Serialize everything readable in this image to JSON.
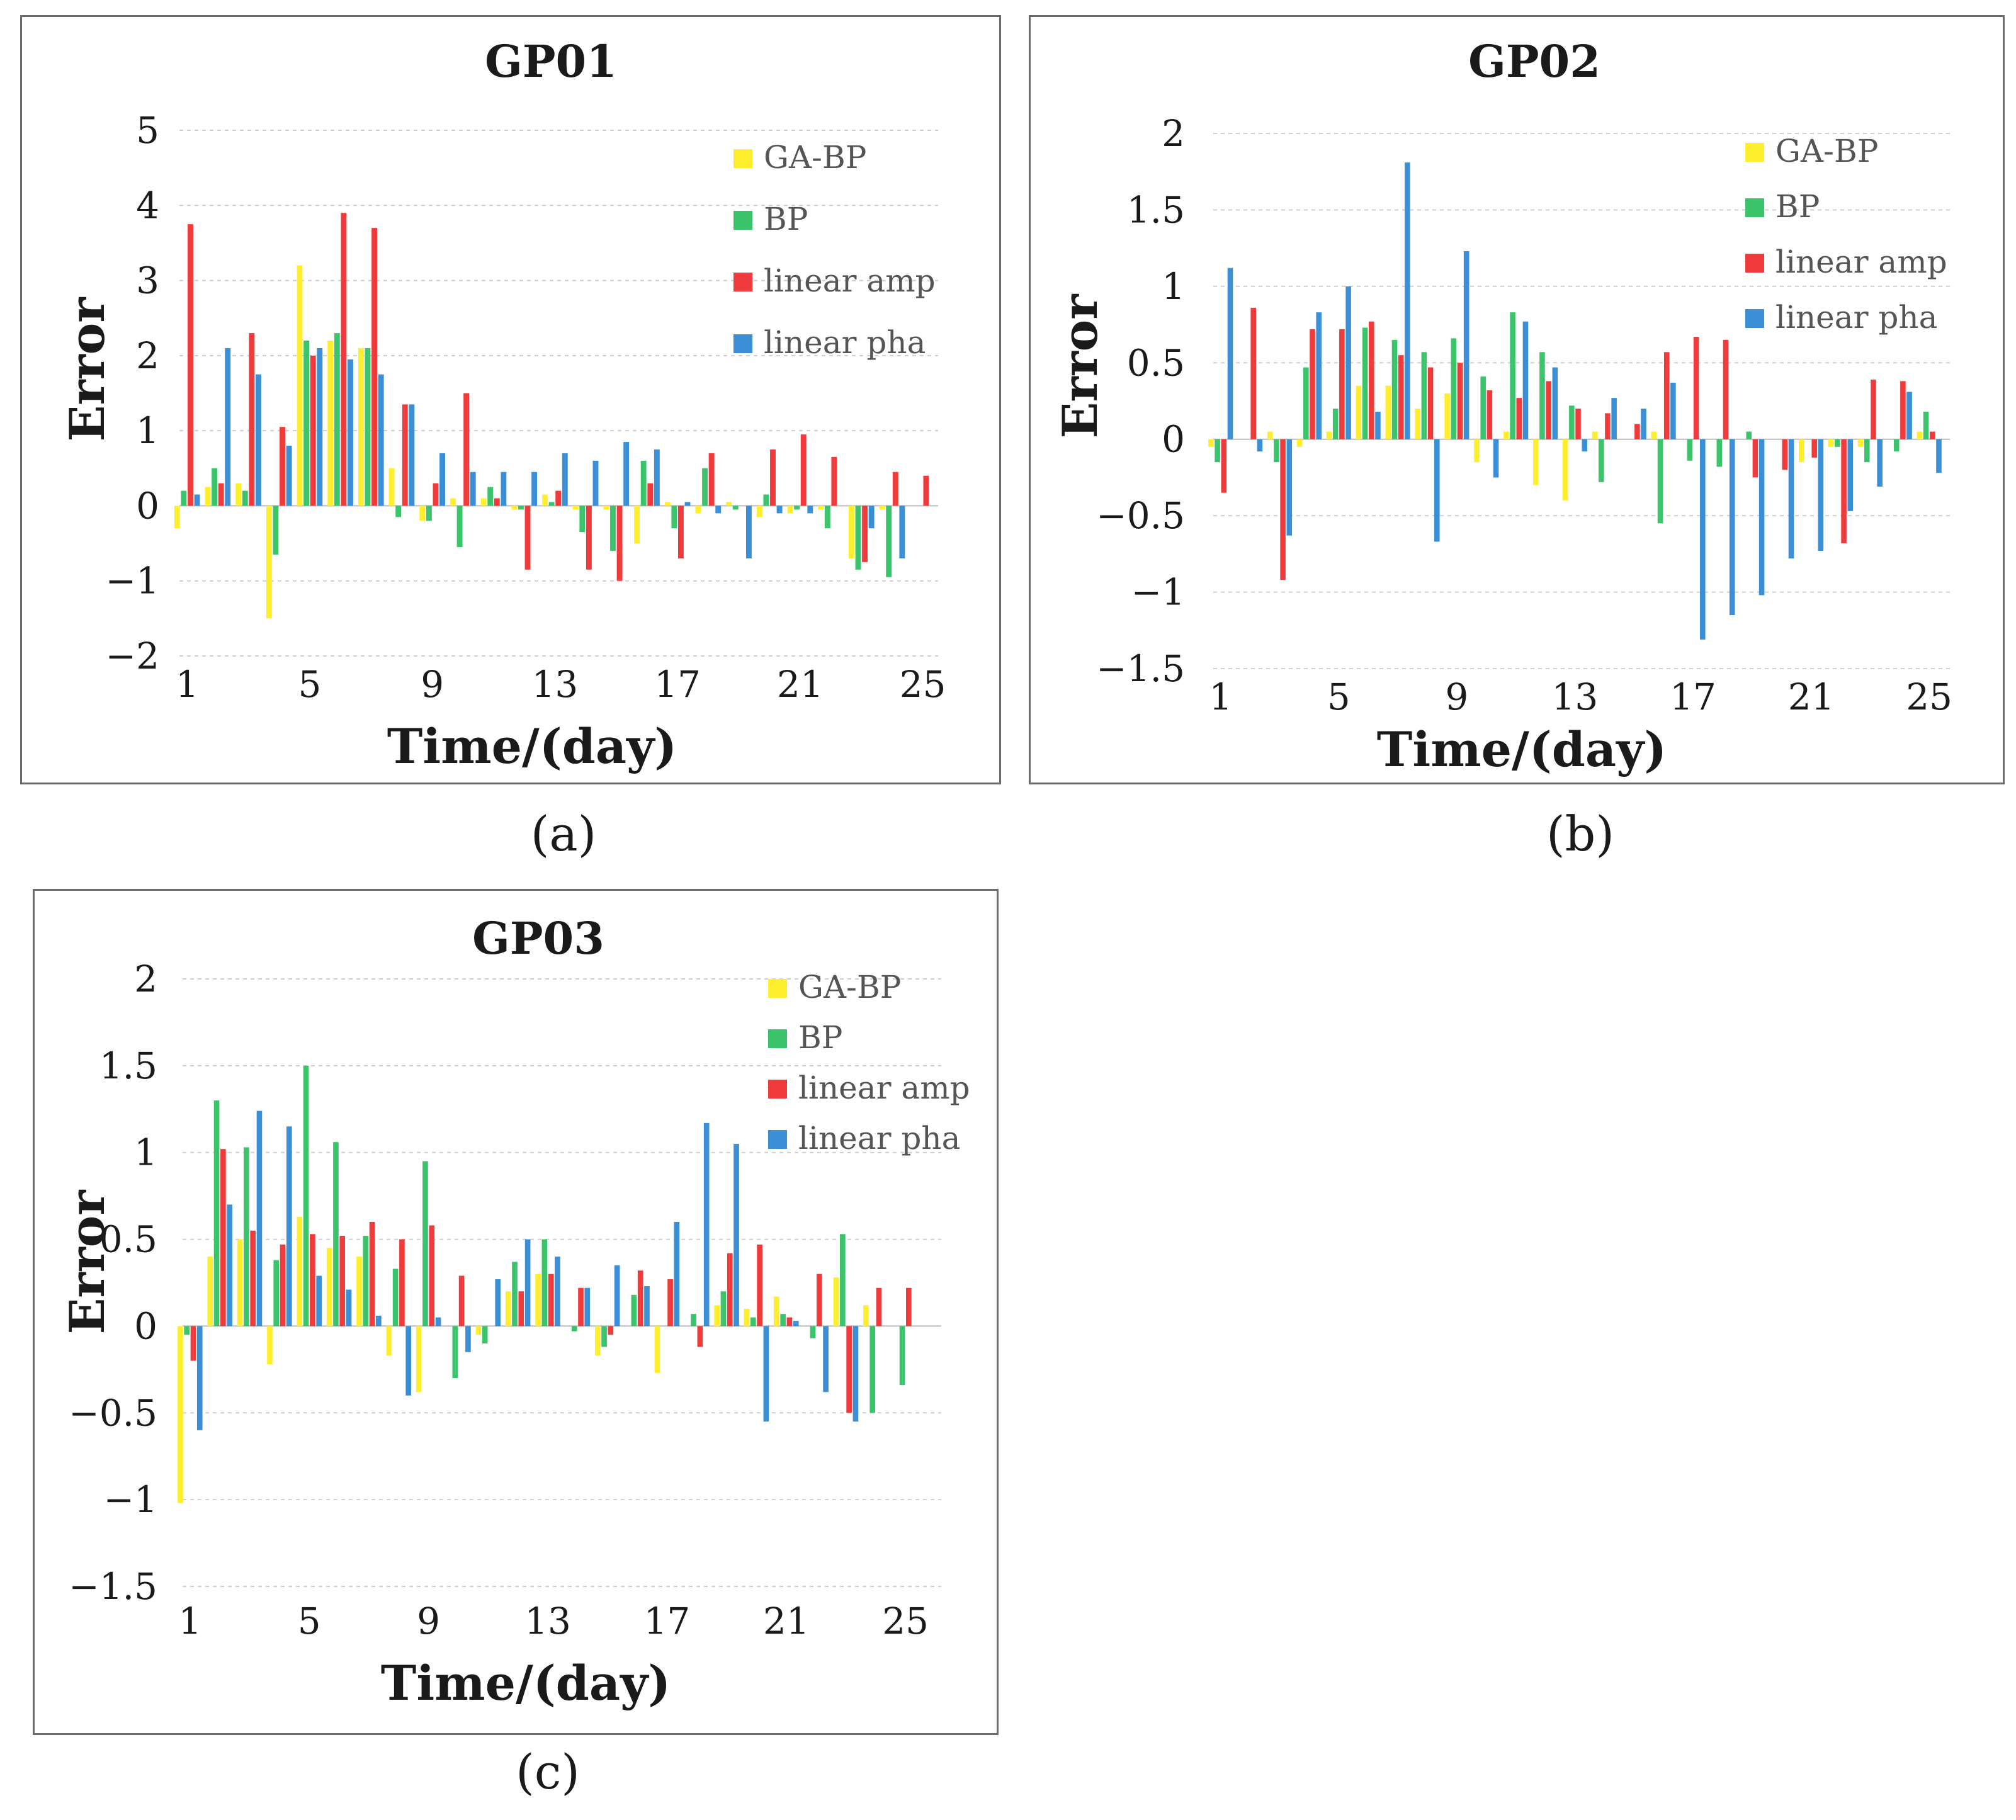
{
  "colors": {
    "GA-BP": "#ffee2e",
    "BP": "#3cc46c",
    "linear amp": "#ef3b3b",
    "linear pha": "#3a8fd6"
  },
  "chart_data": [
    {
      "id": "a",
      "type": "bar",
      "title": "GP01",
      "caption": "(a)",
      "xlabel": "Time/(day)",
      "ylabel": "Error",
      "ylim": [
        -2,
        5
      ],
      "yticks": [
        -2,
        -1,
        0,
        1,
        2,
        3,
        4,
        5
      ],
      "ytick_labels": [
        "−2",
        "−1",
        "0",
        "1",
        "2",
        "3",
        "4",
        "5"
      ],
      "xticks": [
        1,
        5,
        9,
        13,
        17,
        21,
        25
      ],
      "x_max": 25.5,
      "legend": [
        "GA-BP",
        "BP",
        "linear amp",
        "linear pha"
      ],
      "legend_position": "top-right",
      "categories": [
        1,
        2,
        3,
        4,
        5,
        6,
        7,
        8,
        9,
        10,
        11,
        12,
        13,
        14,
        15,
        16,
        17,
        18,
        19,
        20,
        21,
        22,
        23,
        24,
        25
      ],
      "series": [
        {
          "name": "GA-BP",
          "values": [
            -0.3,
            0.25,
            0.3,
            -1.5,
            3.2,
            2.2,
            2.1,
            0.5,
            -0.2,
            0.1,
            0.1,
            -0.05,
            0.15,
            -0.05,
            -0.05,
            -0.5,
            0.05,
            -0.1,
            0.05,
            -0.15,
            -0.1,
            -0.05,
            -0.7,
            -0.05,
            0.0
          ]
        },
        {
          "name": "BP",
          "values": [
            0.2,
            0.5,
            0.2,
            -0.65,
            2.2,
            2.3,
            2.1,
            -0.15,
            -0.2,
            -0.55,
            0.25,
            -0.05,
            0.05,
            -0.35,
            -0.6,
            0.6,
            -0.3,
            0.5,
            -0.05,
            0.15,
            -0.05,
            -0.3,
            -0.85,
            -0.95,
            0.0
          ]
        },
        {
          "name": "linear amp",
          "values": [
            3.75,
            0.3,
            2.3,
            1.05,
            2.0,
            3.9,
            3.7,
            1.35,
            0.3,
            1.5,
            0.1,
            -0.85,
            0.2,
            -0.85,
            -1.0,
            0.3,
            -0.7,
            0.7,
            0.0,
            0.75,
            0.95,
            0.65,
            -0.75,
            0.45,
            0.4
          ]
        },
        {
          "name": "linear pha",
          "values": [
            0.15,
            2.1,
            1.75,
            0.8,
            2.1,
            1.95,
            1.75,
            1.35,
            0.7,
            0.45,
            0.45,
            0.45,
            0.7,
            0.6,
            0.85,
            0.75,
            0.05,
            -0.1,
            -0.7,
            -0.1,
            -0.1,
            0.0,
            -0.3,
            -0.7,
            0.0
          ]
        }
      ]
    },
    {
      "id": "b",
      "type": "bar",
      "title": "GP02",
      "caption": "(b)",
      "xlabel": "Time/(day)",
      "ylabel": "Error",
      "ylim": [
        -1.5,
        2
      ],
      "yticks": [
        -1.5,
        -1,
        -0.5,
        0,
        0.5,
        1,
        1.5,
        2
      ],
      "ytick_labels": [
        "−1.5",
        "−1",
        "−0.5",
        "0",
        "0.5",
        "1",
        "1.5",
        "2"
      ],
      "xticks": [
        1,
        5,
        9,
        13,
        17,
        21,
        25
      ],
      "x_max": 25.7,
      "legend": [
        "GA-BP",
        "BP",
        "linear amp",
        "linear pha"
      ],
      "legend_position": "top-right",
      "categories": [
        1,
        2,
        3,
        4,
        5,
        6,
        7,
        8,
        9,
        10,
        11,
        12,
        13,
        14,
        15,
        16,
        17,
        18,
        19,
        20,
        21,
        22,
        23,
        24,
        25
      ],
      "series": [
        {
          "name": "GA-BP",
          "values": [
            -0.05,
            0.0,
            0.05,
            -0.05,
            0.05,
            0.35,
            0.35,
            0.2,
            0.3,
            -0.15,
            0.05,
            -0.3,
            -0.4,
            0.05,
            0.0,
            0.05,
            0.0,
            0.0,
            0.0,
            0.0,
            -0.15,
            -0.05,
            -0.05,
            0.0,
            0.05
          ]
        },
        {
          "name": "BP",
          "values": [
            -0.15,
            0.0,
            -0.15,
            0.47,
            0.2,
            0.73,
            0.65,
            0.57,
            0.66,
            0.41,
            0.83,
            0.57,
            0.22,
            -0.28,
            0.0,
            -0.55,
            -0.14,
            -0.18,
            0.05,
            0.0,
            0.0,
            -0.05,
            -0.15,
            -0.08,
            0.18
          ]
        },
        {
          "name": "linear amp",
          "values": [
            -0.35,
            0.86,
            -0.92,
            0.72,
            0.72,
            0.77,
            0.55,
            0.47,
            0.5,
            0.32,
            0.27,
            0.38,
            0.2,
            0.17,
            0.1,
            0.57,
            0.67,
            0.65,
            -0.25,
            -0.2,
            -0.12,
            -0.68,
            0.39,
            0.38,
            0.05
          ]
        },
        {
          "name": "linear pha",
          "values": [
            1.12,
            -0.08,
            -0.63,
            0.83,
            1.0,
            0.18,
            1.81,
            -0.67,
            1.23,
            -0.25,
            0.77,
            0.47,
            -0.08,
            0.27,
            0.2,
            0.37,
            -1.31,
            -1.15,
            -1.02,
            -0.78,
            -0.73,
            -0.47,
            -0.31,
            0.31,
            -0.22
          ]
        }
      ]
    },
    {
      "id": "c",
      "type": "bar",
      "title": "GP03",
      "caption": "(c)",
      "xlabel": "Time/(day)",
      "ylabel": "Error",
      "ylim": [
        -1.5,
        2
      ],
      "yticks": [
        -1.5,
        -1,
        -0.5,
        0,
        0.5,
        1,
        1.5,
        2
      ],
      "ytick_labels": [
        "−1.5",
        "−1",
        "−0.5",
        "0",
        "0.5",
        "1",
        "1.5",
        "2"
      ],
      "xticks": [
        1,
        5,
        9,
        13,
        17,
        21,
        25
      ],
      "x_max": 26.2,
      "legend": [
        "GA-BP",
        "BP",
        "linear amp",
        "linear pha"
      ],
      "legend_position": "top-right",
      "categories": [
        1,
        2,
        3,
        4,
        5,
        6,
        7,
        8,
        9,
        10,
        11,
        12,
        13,
        14,
        15,
        16,
        17,
        18,
        19,
        20,
        21,
        22,
        23,
        24,
        25,
        26
      ],
      "series": [
        {
          "name": "GA-BP",
          "values": [
            -1.02,
            0.4,
            0.5,
            -0.22,
            0.63,
            0.45,
            0.4,
            -0.17,
            -0.38,
            0.0,
            -0.05,
            0.2,
            0.3,
            0.0,
            -0.17,
            0.0,
            -0.27,
            0.0,
            0.12,
            0.1,
            0.17,
            0.0,
            0.28,
            0.12,
            0.0,
            0.0
          ]
        },
        {
          "name": "BP",
          "values": [
            -0.05,
            1.3,
            1.03,
            0.38,
            1.5,
            1.06,
            0.52,
            0.33,
            0.95,
            -0.3,
            -0.1,
            0.37,
            0.5,
            -0.03,
            -0.12,
            0.18,
            0.0,
            0.07,
            0.2,
            0.05,
            0.07,
            -0.07,
            0.53,
            -0.5,
            -0.34,
            0.0
          ]
        },
        {
          "name": "linear amp",
          "values": [
            -0.2,
            1.02,
            0.55,
            0.47,
            0.53,
            0.52,
            0.6,
            0.5,
            0.58,
            0.29,
            0.0,
            0.2,
            0.3,
            0.22,
            -0.05,
            0.32,
            0.27,
            -0.12,
            0.42,
            0.47,
            0.05,
            0.3,
            -0.5,
            0.22,
            0.22,
            0.0
          ]
        },
        {
          "name": "linear pha",
          "values": [
            -0.6,
            0.7,
            1.24,
            1.15,
            0.29,
            0.21,
            0.06,
            -0.4,
            0.05,
            -0.15,
            0.27,
            0.5,
            0.4,
            0.22,
            0.35,
            0.23,
            0.6,
            1.17,
            1.05,
            -0.55,
            0.03,
            -0.38,
            -0.55,
            0.0,
            0.0,
            0.0
          ]
        }
      ]
    }
  ]
}
